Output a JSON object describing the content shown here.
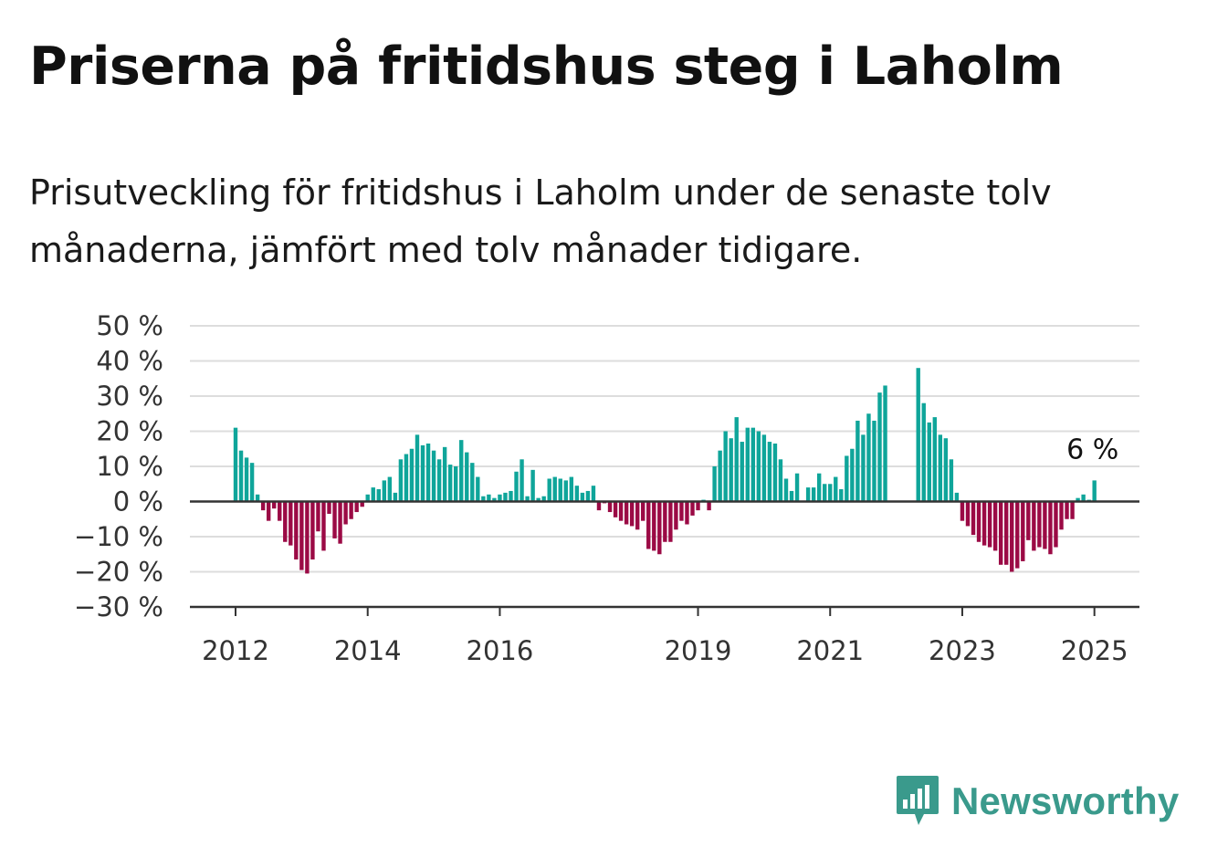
{
  "title": "Priserna på fritidshus steg i Laholm",
  "subtitle": "Prisutveckling för fritidshus i Laholm under de senaste tolv månaderna, jämfört med tolv månader tidigare.",
  "brand": {
    "name": "Newsworthy",
    "color": "#3a9a8c",
    "icon": "newsworthy-logo-icon"
  },
  "colors": {
    "positive": "#0fa59a",
    "negative": "#9b0a45",
    "grid": "#dddddd",
    "zero_line": "#333333"
  },
  "chart_data": {
    "type": "bar",
    "title": "",
    "xlabel": "",
    "ylabel": "",
    "ylim": [
      -30,
      50
    ],
    "yticks": [
      50,
      40,
      30,
      20,
      10,
      0,
      -10,
      -20,
      -30
    ],
    "ytick_labels": [
      "50 %",
      "40 %",
      "30 %",
      "20 %",
      "10 %",
      "0 %",
      "−10 %",
      "−20 %",
      "−30 %"
    ],
    "xticks": [
      {
        "label": "2012",
        "month_index": 0
      },
      {
        "label": "2014",
        "month_index": 24
      },
      {
        "label": "2016",
        "month_index": 48
      },
      {
        "label": "2019",
        "month_index": 84
      },
      {
        "label": "2021",
        "month_index": 108
      },
      {
        "label": "2023",
        "month_index": 132
      },
      {
        "label": "2025",
        "month_index": 156
      }
    ],
    "x_start": "2012-01",
    "x_frequency": "monthly",
    "grid": true,
    "annotation": {
      "text": "6 %",
      "month_index": 156
    },
    "values": [
      21,
      14.5,
      12.5,
      11,
      2,
      -2.5,
      -5.5,
      -2,
      -5.5,
      -11.5,
      -12.5,
      -16.5,
      -19.5,
      -20.5,
      -16.5,
      -8.5,
      -14,
      -3.5,
      -10.5,
      -12,
      -6.5,
      -5,
      -3,
      -1.5,
      2,
      4,
      3.5,
      6,
      7,
      2.5,
      12,
      13.5,
      15,
      19,
      16,
      16.5,
      14.5,
      12,
      15.5,
      10.5,
      10,
      17.5,
      14,
      11,
      7,
      1.5,
      2,
      1,
      2,
      2.5,
      3,
      8.5,
      12,
      1.5,
      9,
      1,
      1.5,
      6.5,
      7,
      6.5,
      6,
      7,
      4.5,
      2.5,
      3,
      4.5,
      -2.5,
      -0.5,
      -3,
      -4.5,
      -5.5,
      -6.5,
      -7,
      -8,
      -5.5,
      -13.5,
      -14,
      -15,
      -11.5,
      -11.5,
      -8,
      -5.5,
      -6.5,
      -4,
      -2.5,
      0.5,
      -2.5,
      10,
      14.5,
      20,
      18,
      24,
      17,
      21,
      21,
      20,
      19,
      17,
      16.5,
      12,
      6.5,
      3,
      8,
      0,
      4,
      4,
      8,
      5,
      5,
      7,
      3.5,
      13,
      15,
      23,
      19,
      25,
      23,
      31,
      33,
      null,
      null,
      null,
      null,
      null,
      38,
      28,
      22.5,
      24,
      19,
      18,
      12,
      2.5,
      -5.5,
      -7,
      -9.5,
      -11.5,
      -12.5,
      -13,
      -14,
      -18,
      -18,
      -20,
      -19,
      -17,
      -11,
      -14,
      -13,
      -13.5,
      -15,
      -13,
      -8,
      -5,
      -5,
      1,
      2,
      0.5,
      6
    ]
  }
}
